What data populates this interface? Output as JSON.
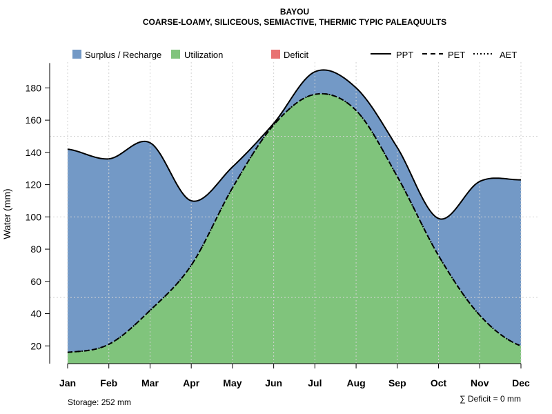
{
  "chart_data": {
    "type": "area",
    "title": "BAYOU",
    "subtitle": "COARSE-LOAMY, SILICEOUS, SEMIACTIVE, THERMIC TYPIC PALEAQUULTS",
    "ylabel": "Water (mm)",
    "xlabel": "",
    "ylim": [
      9,
      196
    ],
    "yticks": [
      20,
      40,
      60,
      80,
      100,
      120,
      140,
      160,
      180
    ],
    "categories": [
      "Jan",
      "Feb",
      "Mar",
      "Apr",
      "May",
      "Jun",
      "Jul",
      "Aug",
      "Sep",
      "Oct",
      "Nov",
      "Dec"
    ],
    "series": [
      {
        "name": "PPT",
        "line": "solid",
        "values": [
          142,
          136,
          146,
          110,
          131,
          158,
          190,
          180,
          143,
          99,
          122,
          123
        ]
      },
      {
        "name": "PET",
        "line": "dashed",
        "values": [
          16,
          21,
          42,
          70,
          118,
          157,
          176,
          166,
          125,
          76,
          39,
          20
        ]
      },
      {
        "name": "AET",
        "line": "dotted",
        "values": [
          16,
          21,
          42,
          70,
          118,
          157,
          176,
          166,
          125,
          76,
          39,
          20
        ]
      }
    ],
    "areas": [
      {
        "name": "Surplus / Recharge",
        "color": "#7399c6",
        "between": [
          "PET",
          "PPT"
        ]
      },
      {
        "name": "Utilization",
        "color": "#80c47c",
        "between": [
          "baseline",
          "PET"
        ]
      },
      {
        "name": "Deficit",
        "color": "#e87272",
        "between": [
          "PPT",
          "PET"
        ]
      }
    ],
    "legend": {
      "areas": [
        "Surplus / Recharge",
        "Utilization",
        "Deficit"
      ],
      "lines": [
        "PPT",
        "PET",
        "AET"
      ],
      "placement": "top"
    },
    "grid": true,
    "footer_left": "Storage: 252 mm",
    "footer_right": "∑ Deficit = 0 mm"
  }
}
